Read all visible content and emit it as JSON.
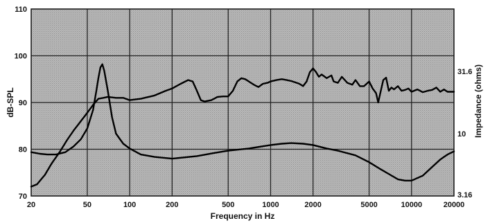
{
  "chart_data": {
    "type": "line",
    "xlabel": "Frequency in Hz",
    "ylabel": "dB-SPL",
    "y2label": "Impedance (ohms)",
    "xscale": "log",
    "xlim": [
      20,
      20000
    ],
    "ylim": [
      70,
      110
    ],
    "y2scale": "log",
    "y2lim": [
      3.16,
      100
    ],
    "grid": true,
    "x_ticks": [
      "20",
      "50",
      "100",
      "200",
      "500",
      "1000",
      "2000",
      "5000",
      "10000",
      "20000"
    ],
    "y_ticks": [
      "70",
      "80",
      "90",
      "100",
      "110"
    ],
    "y2_ticks": [
      "3.16",
      "10",
      "31.6"
    ],
    "colors": {
      "plot_background": "#b5b5b5",
      "grid": "#222222",
      "line": "#000000"
    },
    "series": [
      {
        "axis": "left",
        "unit": "dB-SPL",
        "x": [
          20,
          22,
          25,
          28,
          32,
          36,
          40,
          45,
          50,
          55,
          60,
          65,
          70,
          80,
          90,
          100,
          120,
          150,
          180,
          200,
          230,
          260,
          280,
          300,
          320,
          340,
          380,
          420,
          460,
          500,
          540,
          580,
          620,
          660,
          700,
          760,
          820,
          880,
          950,
          1000,
          1100,
          1200,
          1300,
          1400,
          1500,
          1600,
          1700,
          1800,
          1900,
          2000,
          2100,
          2200,
          2300,
          2500,
          2700,
          2800,
          3000,
          3200,
          3500,
          3800,
          4000,
          4300,
          4600,
          5000,
          5300,
          5600,
          5800,
          6000,
          6300,
          6600,
          6900,
          7200,
          7500,
          8000,
          8500,
          9000,
          9500,
          10000,
          11000,
          12000,
          13000,
          14000,
          15000,
          16000,
          17000,
          18000,
          20000
        ],
        "y": [
          72,
          72.5,
          74.5,
          77,
          79.5,
          82,
          84,
          86,
          87.8,
          89.5,
          90.8,
          91,
          91.2,
          91,
          91,
          90.5,
          90.8,
          91.5,
          92.5,
          93,
          94,
          94.8,
          94.5,
          92.5,
          90.5,
          90.2,
          90.5,
          91.2,
          91.3,
          91.3,
          92.5,
          94.5,
          95.2,
          95,
          94.5,
          93.8,
          93.3,
          94,
          94.2,
          94.5,
          94.8,
          95,
          94.8,
          94.6,
          94.3,
          94,
          93.5,
          94.5,
          96.5,
          97.3,
          96.5,
          95.5,
          96,
          95.2,
          95.8,
          94.5,
          94.2,
          95.5,
          94.2,
          93.8,
          94.8,
          93.5,
          93.5,
          94.5,
          93,
          92,
          90,
          92,
          94.8,
          95.3,
          92.5,
          93.2,
          92.8,
          93.5,
          92.5,
          92.7,
          93,
          92.3,
          92.8,
          92.2,
          92.5,
          92.7,
          93.2,
          92.3,
          92.8,
          92.3,
          92.3
        ]
      },
      {
        "axis": "right",
        "unit": "ohms",
        "x": [
          20,
          23,
          26,
          30,
          35,
          40,
          45,
          50,
          55,
          58,
          60,
          62,
          64,
          66,
          70,
          75,
          80,
          90,
          100,
          120,
          150,
          200,
          300,
          400,
          500,
          700,
          1000,
          1200,
          1400,
          1700,
          2000,
          2500,
          3000,
          4000,
          5000,
          6000,
          7000,
          8000,
          9000,
          10000,
          12000,
          14000,
          16000,
          18000,
          20000
        ],
        "y": [
          7.1,
          6.9,
          6.8,
          6.8,
          7.1,
          7.9,
          9.0,
          11.0,
          15.5,
          22.0,
          28.0,
          34.0,
          36.0,
          32.0,
          22.0,
          13.5,
          10.0,
          8.3,
          7.6,
          6.8,
          6.5,
          6.3,
          6.6,
          7.0,
          7.3,
          7.6,
          8.1,
          8.3,
          8.4,
          8.3,
          8.1,
          7.6,
          7.3,
          6.7,
          5.9,
          5.2,
          4.7,
          4.3,
          4.2,
          4.2,
          4.6,
          5.4,
          6.2,
          6.8,
          7.2
        ]
      }
    ]
  }
}
